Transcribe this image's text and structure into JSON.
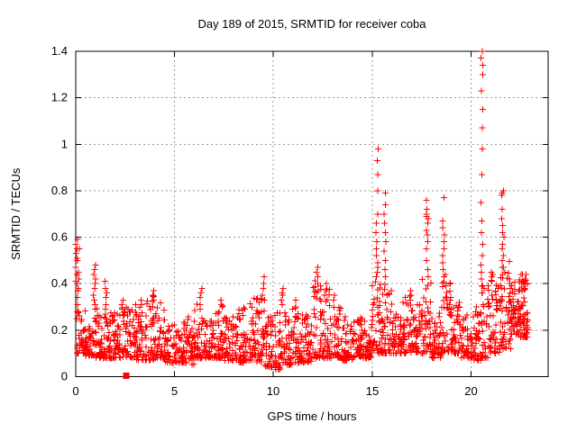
{
  "page": {
    "background": "#ffffff"
  },
  "chart_data": {
    "type": "scatter",
    "title": "Day 189 of 2015, SRMTID for receiver coba",
    "xlabel": "GPS time / hours",
    "ylabel": "SRMTID / TECUs",
    "series_name": "SRMTID",
    "xlim": [
      0,
      23.9
    ],
    "ylim": [
      0,
      1.4
    ],
    "xticks": [
      0,
      5,
      10,
      15,
      20
    ],
    "xtick_labels": [
      "0",
      "5",
      "10",
      "15",
      "20"
    ],
    "yticks": [
      0,
      0.2,
      0.4,
      0.6,
      0.8,
      1,
      1.2,
      1.4
    ],
    "ytick_labels": [
      "0",
      "0.2",
      "0.4",
      "0.6",
      "0.8",
      "1",
      "1.2",
      "1.4"
    ],
    "grid": true,
    "grid_style": "dotted",
    "legend": "none",
    "marker": "plus",
    "marker_size_px": 7,
    "colors": {
      "marker": "#ff0000",
      "grid": "#9b9b9b",
      "frame": "#000000",
      "text": "#000000",
      "background": "#ffffff"
    },
    "baseline_bins": [
      [
        0.03,
        0.5,
        0.1,
        0.3,
        40
      ],
      [
        0.5,
        1.0,
        0.09,
        0.26,
        40
      ],
      [
        1.0,
        1.5,
        0.08,
        0.3,
        42
      ],
      [
        1.5,
        2.0,
        0.08,
        0.28,
        42
      ],
      [
        2.0,
        2.5,
        0.08,
        0.3,
        42
      ],
      [
        2.5,
        3.0,
        0.08,
        0.31,
        42
      ],
      [
        3.0,
        3.5,
        0.07,
        0.33,
        42
      ],
      [
        3.5,
        4.0,
        0.07,
        0.35,
        42
      ],
      [
        4.0,
        4.5,
        0.08,
        0.33,
        42
      ],
      [
        4.5,
        5.0,
        0.06,
        0.24,
        42
      ],
      [
        5.0,
        5.5,
        0.06,
        0.24,
        42
      ],
      [
        5.5,
        6.0,
        0.05,
        0.27,
        42
      ],
      [
        6.0,
        6.5,
        0.08,
        0.35,
        42
      ],
      [
        6.5,
        7.0,
        0.08,
        0.24,
        42
      ],
      [
        7.0,
        7.5,
        0.08,
        0.32,
        42
      ],
      [
        7.5,
        8.0,
        0.07,
        0.27,
        42
      ],
      [
        8.0,
        8.5,
        0.06,
        0.29,
        42
      ],
      [
        8.5,
        9.0,
        0.07,
        0.33,
        42
      ],
      [
        9.0,
        9.5,
        0.06,
        0.35,
        42
      ],
      [
        9.5,
        10.0,
        0.04,
        0.3,
        42
      ],
      [
        10.0,
        10.5,
        0.03,
        0.28,
        40
      ],
      [
        10.5,
        11.0,
        0.05,
        0.3,
        42
      ],
      [
        11.0,
        11.5,
        0.06,
        0.3,
        42
      ],
      [
        11.5,
        12.0,
        0.06,
        0.27,
        42
      ],
      [
        12.0,
        12.5,
        0.08,
        0.42,
        42
      ],
      [
        12.5,
        13.0,
        0.08,
        0.38,
        42
      ],
      [
        13.0,
        13.5,
        0.08,
        0.32,
        42
      ],
      [
        13.5,
        14.0,
        0.07,
        0.26,
        42
      ],
      [
        14.0,
        14.5,
        0.08,
        0.26,
        42
      ],
      [
        14.5,
        15.0,
        0.08,
        0.24,
        42
      ],
      [
        15.0,
        15.5,
        0.1,
        0.42,
        44
      ],
      [
        15.5,
        16.0,
        0.1,
        0.4,
        44
      ],
      [
        16.0,
        16.5,
        0.1,
        0.27,
        42
      ],
      [
        16.5,
        17.0,
        0.1,
        0.36,
        42
      ],
      [
        17.0,
        17.5,
        0.1,
        0.32,
        42
      ],
      [
        17.5,
        18.0,
        0.1,
        0.42,
        44
      ],
      [
        18.0,
        18.5,
        0.08,
        0.28,
        42
      ],
      [
        18.5,
        19.0,
        0.1,
        0.45,
        44
      ],
      [
        19.0,
        19.5,
        0.1,
        0.31,
        42
      ],
      [
        19.5,
        20.0,
        0.08,
        0.27,
        42
      ],
      [
        20.0,
        20.5,
        0.07,
        0.32,
        42
      ],
      [
        20.5,
        21.0,
        0.08,
        0.4,
        44
      ],
      [
        21.0,
        21.5,
        0.1,
        0.42,
        44
      ],
      [
        21.5,
        22.0,
        0.12,
        0.5,
        46
      ],
      [
        22.0,
        22.5,
        0.18,
        0.42,
        58
      ],
      [
        22.5,
        22.9,
        0.17,
        0.44,
        52
      ]
    ],
    "spike_columns": [
      {
        "x": 0.06,
        "ys": [
          0.59,
          0.57,
          0.55,
          0.53,
          0.51,
          0.5,
          0.47,
          0.44,
          0.41,
          0.4,
          0.37,
          0.34,
          0.31,
          0.28
        ]
      },
      {
        "x": 0.14,
        "ys": [
          0.55,
          0.5,
          0.45,
          0.42,
          0.38
        ]
      },
      {
        "x": 0.95,
        "ys": [
          0.48,
          0.46,
          0.44,
          0.42,
          0.4,
          0.38,
          0.35,
          0.33,
          0.31,
          0.29
        ]
      },
      {
        "x": 1.55,
        "ys": [
          0.41,
          0.38,
          0.36,
          0.34,
          0.31,
          0.29,
          0.27
        ]
      },
      {
        "x": 2.35,
        "ys": [
          0.33,
          0.31,
          0.29
        ]
      },
      {
        "x": 3.3,
        "ys": [
          0.33,
          0.31
        ]
      },
      {
        "x": 3.95,
        "ys": [
          0.37,
          0.35,
          0.33,
          0.3
        ]
      },
      {
        "x": 6.35,
        "ys": [
          0.38,
          0.36,
          0.34,
          0.31,
          0.29
        ]
      },
      {
        "x": 7.35,
        "ys": [
          0.33,
          0.31
        ]
      },
      {
        "x": 9.5,
        "ys": [
          0.43,
          0.4,
          0.38,
          0.35,
          0.33
        ]
      },
      {
        "x": 10.45,
        "ys": [
          0.38,
          0.36,
          0.35,
          0.33,
          0.31
        ]
      },
      {
        "x": 11.15,
        "ys": [
          0.33,
          0.3
        ]
      },
      {
        "x": 12.2,
        "ys": [
          0.47,
          0.45,
          0.43,
          0.4,
          0.37
        ]
      },
      {
        "x": 12.65,
        "ys": [
          0.4,
          0.37,
          0.35
        ]
      },
      {
        "x": 13.1,
        "ys": [
          0.35,
          0.33
        ]
      },
      {
        "x": 15.25,
        "ys": [
          0.98,
          0.93,
          0.87,
          0.8,
          0.7,
          0.66,
          0.62,
          0.58,
          0.55,
          0.52,
          0.49,
          0.47,
          0.45,
          0.43
        ]
      },
      {
        "x": 15.66,
        "ys": [
          0.79,
          0.74,
          0.7,
          0.66,
          0.62,
          0.58,
          0.54,
          0.5,
          0.46,
          0.43
        ]
      },
      {
        "x": 16.95,
        "ys": [
          0.37,
          0.35,
          0.33
        ]
      },
      {
        "x": 17.78,
        "ys": [
          0.76,
          0.72,
          0.7,
          0.69,
          0.68,
          0.66,
          0.63,
          0.61,
          0.58,
          0.55,
          0.5,
          0.46,
          0.43
        ]
      },
      {
        "x": 18.6,
        "ys": [
          0.77,
          0.67,
          0.64,
          0.61,
          0.58,
          0.55,
          0.52,
          0.49,
          0.46,
          0.43
        ]
      },
      {
        "x": 19.4,
        "ys": [
          0.32,
          0.3
        ]
      },
      {
        "x": 20.55,
        "ys": [
          1.4,
          1.37,
          1.34,
          1.3,
          1.23,
          1.15,
          1.07,
          0.98,
          0.87,
          0.75,
          0.67,
          0.62,
          0.57,
          0.52,
          0.48,
          0.45,
          0.42,
          0.39,
          0.36
        ]
      },
      {
        "x": 21.05,
        "ys": [
          0.45,
          0.44,
          0.43,
          0.41
        ]
      },
      {
        "x": 21.6,
        "ys": [
          0.8,
          0.79,
          0.78,
          0.72,
          0.68,
          0.65,
          0.62,
          0.6,
          0.57,
          0.55,
          0.52,
          0.5,
          0.47,
          0.44
        ]
      },
      {
        "x": 21.95,
        "ys": [
          0.42,
          0.4,
          0.38,
          0.36
        ]
      },
      {
        "x": 22.75,
        "ys": [
          0.44,
          0.42,
          0.4,
          0.38
        ]
      }
    ],
    "square_points": [
      [
        2.55,
        0.004
      ]
    ]
  }
}
